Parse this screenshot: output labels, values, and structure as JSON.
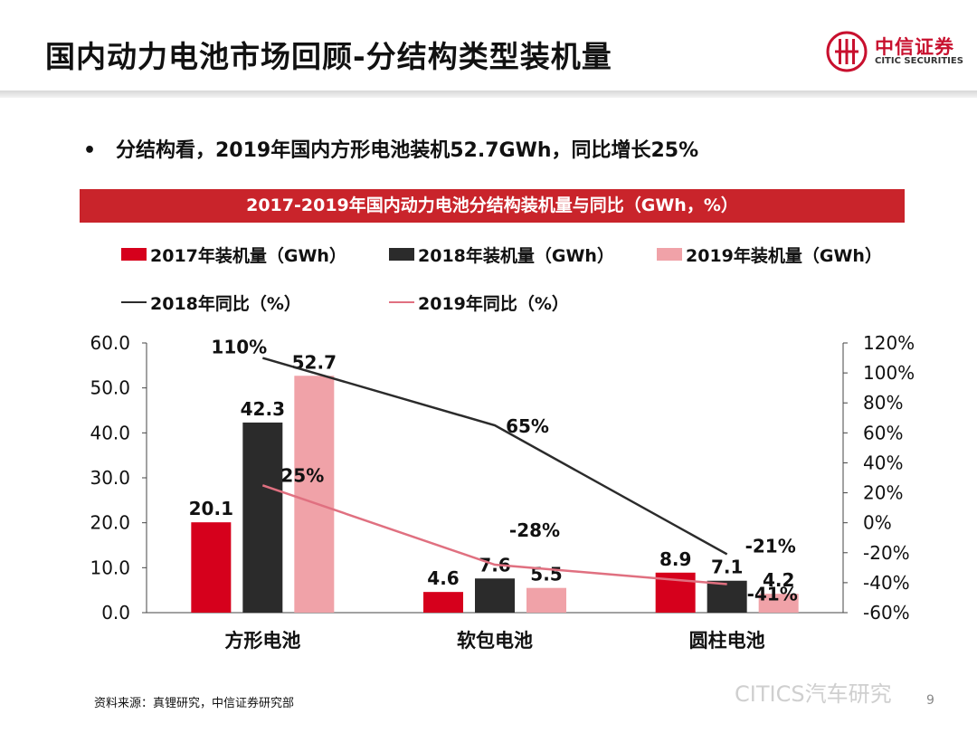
{
  "header": {
    "title": "国内动力电池市场回顾-分结构类型装机量",
    "logo_cn": "中信证券",
    "logo_en": "CITIC SECURITIES"
  },
  "bullet": {
    "marker": "•",
    "text": "分结构看，2019年国内方形电池装机52.7GWh，同比增长25%"
  },
  "colors": {
    "accent": "#c9242b",
    "bar_2017": "#d6001c",
    "bar_2018": "#2b2b2b",
    "bar_2019": "#f0a2a8",
    "line_2018": "#2b2b2b",
    "line_2019": "#e07080"
  },
  "chart_data": {
    "type": "bar",
    "title": "2017-2019年国内动力电池分结构装机量与同比（GWh，%）",
    "categories": [
      "方形电池",
      "软包电池",
      "圆柱电池"
    ],
    "series": [
      {
        "name": "2017年装机量（GWh）",
        "kind": "bar",
        "axis": "left",
        "values": [
          20.1,
          4.6,
          8.9
        ],
        "labels": [
          "20.1",
          "4.6",
          "8.9"
        ]
      },
      {
        "name": "2018年装机量（GWh）",
        "kind": "bar",
        "axis": "left",
        "values": [
          42.3,
          7.6,
          7.1
        ],
        "labels": [
          "42.3",
          "7.6",
          "7.1"
        ]
      },
      {
        "name": "2019年装机量（GWh）",
        "kind": "bar",
        "axis": "left",
        "values": [
          52.7,
          5.5,
          4.2
        ],
        "labels": [
          "52.7",
          "5.5",
          "4.2"
        ]
      },
      {
        "name": "2018年同比（%）",
        "kind": "line",
        "axis": "right",
        "values": [
          110,
          65,
          -21
        ],
        "labels": [
          "110%",
          "65%",
          "-21%"
        ]
      },
      {
        "name": "2019年同比（%）",
        "kind": "line",
        "axis": "right",
        "values": [
          25,
          -28,
          -41
        ],
        "labels": [
          "25%",
          "-28%",
          "-41%"
        ]
      }
    ],
    "y_left": {
      "min": 0,
      "max": 60,
      "step": 10,
      "ticks": [
        "0.0",
        "10.0",
        "20.0",
        "30.0",
        "40.0",
        "50.0",
        "60.0"
      ]
    },
    "y_right": {
      "min": -60,
      "max": 120,
      "step": 20,
      "ticks": [
        "-60%",
        "-40%",
        "-20%",
        "0%",
        "20%",
        "40%",
        "60%",
        "80%",
        "100%",
        "120%"
      ]
    },
    "legend_position": "top",
    "grid": false
  },
  "footer": {
    "source": "资料来源：真锂研究，中信证券研究部",
    "watermark": "CITICS汽车研究",
    "page_number": "9"
  }
}
